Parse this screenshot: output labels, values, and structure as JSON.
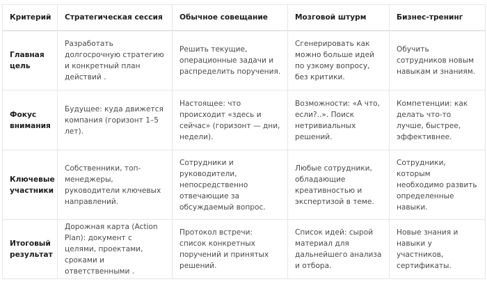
{
  "table": {
    "headers": [
      "Критерий",
      "Стратегическая сессия",
      "Обычное совещание",
      "Мозговой штурм",
      "Бизнес-тренинг"
    ],
    "rows": [
      [
        "Главная цель",
        "Разработать долгосрочную стратегию и конкретный план действий .",
        "Решить текущие, операционные задачи и распределить поручения.",
        "Сгенерировать как можно больше идей по узкому вопросу, без критики.",
        "Обучить сотрудников новым навыкам и знаниям."
      ],
      [
        "Фокус внимания",
        "Будущее: куда движется компания (горизонт 1–5 лет).",
        "Настоящее: что происходит «здесь и сейчас» (горизонт — дни, недели).",
        "Возможности: «А что, если?..». Поиск нетривиальных решений.",
        "Компетенции: как делать что-то лучше, быстрее, эффективнее."
      ],
      [
        "Ключевые участники",
        "Собственники, топ-менеджеры, руководители ключевых направлений.",
        "Сотрудники и руководители, непосредственно отвечающие за обсуждаемый вопрос.",
        "Любые сотрудники, обладающие креативностью и экспертизой в теме.",
        "Сотрудники, которым необходимо развить определенные навыки."
      ],
      [
        "Итоговый результат",
        "Дорожная карта (Action Plan): документ с целями, проектами, сроками и ответственными .",
        "Протокол встречи: список конкретных поручений и принятых решений.",
        "Список идей: сырой материал для дальнейшего анализа и отбора.",
        "Новые знания и навыки у участников, сертификаты."
      ]
    ]
  }
}
